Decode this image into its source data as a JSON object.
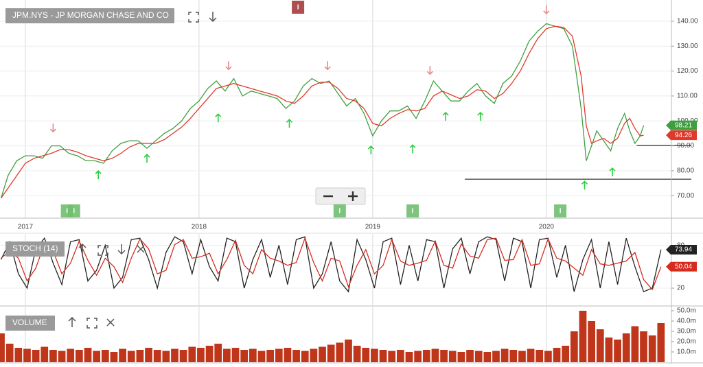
{
  "chart_data": [
    {
      "type": "line",
      "title": "JPM.NYS - JP MORGAN CHASE AND CO",
      "xlim": [
        2016.854,
        2020.72
      ],
      "xticks": [
        2017,
        2018,
        2019,
        2020
      ],
      "ylim": [
        61,
        148.5
      ],
      "yticks": [
        {
          "value": 70,
          "label": "70.00"
        },
        {
          "value": 80,
          "label": "80.00"
        },
        {
          "value": 90,
          "label": "90.00"
        },
        {
          "value": 100,
          "label": "100.00"
        },
        {
          "value": 110,
          "label": "110.00"
        },
        {
          "value": 120,
          "label": "120.00"
        },
        {
          "value": 130,
          "label": "130.00"
        },
        {
          "value": 140,
          "label": "140.00"
        }
      ],
      "grid": true,
      "x": [
        2016.86,
        2016.9,
        2016.95,
        2017.0,
        2017.05,
        2017.1,
        2017.15,
        2017.2,
        2017.25,
        2017.3,
        2017.35,
        2017.4,
        2017.45,
        2017.5,
        2017.55,
        2017.6,
        2017.65,
        2017.7,
        2017.75,
        2017.8,
        2017.85,
        2017.9,
        2017.95,
        2018.0,
        2018.05,
        2018.1,
        2018.15,
        2018.2,
        2018.25,
        2018.3,
        2018.35,
        2018.4,
        2018.45,
        2018.5,
        2018.55,
        2018.6,
        2018.65,
        2018.7,
        2018.75,
        2018.8,
        2018.85,
        2018.9,
        2018.95,
        2019.0,
        2019.05,
        2019.1,
        2019.15,
        2019.2,
        2019.25,
        2019.3,
        2019.35,
        2019.4,
        2019.45,
        2019.5,
        2019.55,
        2019.6,
        2019.65,
        2019.7,
        2019.75,
        2019.8,
        2019.85,
        2019.9,
        2019.95,
        2020.0,
        2020.05,
        2020.1,
        2020.15,
        2020.2,
        2020.23,
        2020.26,
        2020.29,
        2020.33,
        2020.37,
        2020.41,
        2020.45,
        2020.48,
        2020.51,
        2020.54,
        2020.56
      ],
      "series": [
        {
          "color": "#3f9f3f",
          "values": [
            69,
            78,
            84,
            86,
            86,
            85,
            90,
            90,
            87,
            86,
            84,
            84,
            83,
            88,
            91,
            92,
            92,
            89,
            92,
            95,
            97,
            100,
            105,
            108,
            113,
            116,
            112,
            117,
            110,
            112,
            111,
            110,
            109,
            105,
            108,
            114,
            117,
            115,
            116,
            111,
            106,
            109,
            103,
            94,
            100,
            104,
            104,
            106,
            101,
            108,
            116,
            112,
            108,
            108,
            112,
            115,
            110,
            107,
            115,
            118,
            124,
            132,
            136,
            139,
            138,
            137,
            130,
            105,
            84,
            90,
            96,
            92,
            88,
            97,
            103,
            96,
            91,
            94,
            98.21
          ]
        },
        {
          "color": "#e0392c",
          "values": [
            69,
            73,
            78,
            83,
            85,
            86,
            87,
            88.5,
            88.5,
            87.5,
            86,
            85,
            84,
            85,
            87,
            89.5,
            91,
            91,
            91,
            92.5,
            95,
            97.5,
            101,
            105,
            109,
            113,
            114,
            115,
            114,
            113,
            112,
            111,
            110,
            108,
            107,
            110,
            114,
            115.5,
            115.5,
            113,
            109,
            108,
            105,
            99,
            98,
            101,
            103,
            104.5,
            104,
            105,
            110,
            112,
            110.5,
            109,
            110,
            112.5,
            112,
            109,
            111,
            115,
            120,
            127,
            133,
            137,
            138,
            137.5,
            134,
            118,
            98,
            91,
            92,
            93,
            91,
            93,
            99,
            101,
            97,
            94,
            94.26
          ]
        }
      ],
      "signals": [
        {
          "x": 2017.16,
          "y": 97.3,
          "dir": "down"
        },
        {
          "x": 2018.17,
          "y": 122.3,
          "dir": "down"
        },
        {
          "x": 2018.74,
          "y": 122.3,
          "dir": "down"
        },
        {
          "x": 2019.33,
          "y": 120.4,
          "dir": "down"
        },
        {
          "x": 2020.0,
          "y": 144.7,
          "dir": "down"
        },
        {
          "x": 2017.42,
          "y": 78.3,
          "dir": "up"
        },
        {
          "x": 2017.7,
          "y": 84.9,
          "dir": "up"
        },
        {
          "x": 2018.11,
          "y": 101.1,
          "dir": "up"
        },
        {
          "x": 2018.52,
          "y": 98.9,
          "dir": "up"
        },
        {
          "x": 2018.99,
          "y": 88.2,
          "dir": "up"
        },
        {
          "x": 2019.23,
          "y": 88.7,
          "dir": "up"
        },
        {
          "x": 2019.42,
          "y": 101.7,
          "dir": "up"
        },
        {
          "x": 2019.62,
          "y": 101.7,
          "dir": "up"
        },
        {
          "x": 2020.22,
          "y": 74.1,
          "dir": "up"
        },
        {
          "x": 2020.38,
          "y": 79.4,
          "dir": "up"
        }
      ],
      "events": [
        {
          "x": 2017.24,
          "label": "I",
          "color": "#6fbf6f",
          "position": "bottom"
        },
        {
          "x": 2017.28,
          "label": "I",
          "color": "#6fbf6f",
          "position": "bottom"
        },
        {
          "x": 2018.81,
          "label": "I",
          "color": "#6fbf6f",
          "position": "bottom"
        },
        {
          "x": 2019.23,
          "label": "I",
          "color": "#6fbf6f",
          "position": "bottom"
        },
        {
          "x": 2020.08,
          "label": "I",
          "color": "#6fbf6f",
          "position": "bottom"
        },
        {
          "x": 2018.57,
          "label": "I",
          "color": "#a53b3b",
          "position": "top"
        }
      ],
      "hlines": [
        {
          "value": 90.1,
          "from": 2020.52
        },
        {
          "value": 76.6,
          "from": 2019.53
        }
      ]
    },
    {
      "type": "line",
      "title": "STOCH (14)",
      "xlim": [
        2016.854,
        2020.72
      ],
      "ylim": [
        -4,
        96
      ],
      "yticks": [
        20,
        80
      ],
      "grid": true,
      "x": [
        2016.86,
        2016.91,
        2016.96,
        2017.01,
        2017.06,
        2017.11,
        2017.16,
        2017.21,
        2017.26,
        2017.31,
        2017.36,
        2017.41,
        2017.46,
        2017.51,
        2017.56,
        2017.61,
        2017.66,
        2017.71,
        2017.76,
        2017.81,
        2017.86,
        2017.91,
        2017.96,
        2018.01,
        2018.06,
        2018.11,
        2018.16,
        2018.21,
        2018.26,
        2018.31,
        2018.36,
        2018.41,
        2018.46,
        2018.51,
        2018.56,
        2018.61,
        2018.66,
        2018.71,
        2018.76,
        2018.81,
        2018.86,
        2018.91,
        2018.96,
        2019.01,
        2019.06,
        2019.11,
        2019.16,
        2019.21,
        2019.26,
        2019.31,
        2019.36,
        2019.41,
        2019.46,
        2019.51,
        2019.56,
        2019.61,
        2019.66,
        2019.71,
        2019.76,
        2019.81,
        2019.86,
        2019.91,
        2019.96,
        2020.01,
        2020.06,
        2020.11,
        2020.16,
        2020.21,
        2020.26,
        2020.31,
        2020.36,
        2020.41,
        2020.46,
        2020.51,
        2020.56,
        2020.61,
        2020.66
      ],
      "series": [
        {
          "color": "#222222",
          "values": [
            60,
            85,
            40,
            20,
            75,
            90,
            55,
            25,
            85,
            88,
            30,
            45,
            80,
            20,
            35,
            88,
            90,
            60,
            20,
            70,
            92,
            85,
            40,
            88,
            50,
            30,
            90,
            85,
            20,
            60,
            88,
            35,
            80,
            25,
            88,
            92,
            20,
            40,
            85,
            30,
            15,
            88,
            60,
            20,
            85,
            90,
            25,
            80,
            30,
            88,
            85,
            20,
            75,
            90,
            40,
            85,
            92,
            88,
            30,
            90,
            85,
            20,
            88,
            90,
            35,
            80,
            15,
            60,
            88,
            20,
            85,
            25,
            90,
            50,
            15,
            20,
            73.94
          ]
        },
        {
          "color": "#d62b1f",
          "values": [
            62,
            72,
            62,
            30,
            48,
            82,
            72,
            40,
            55,
            86,
            59,
            38,
            62,
            50,
            28,
            62,
            89,
            75,
            40,
            45,
            81,
            88,
            62,
            64,
            69,
            40,
            60,
            87,
            52,
            40,
            74,
            62,
            58,
            52,
            56,
            90,
            56,
            30,
            62,
            58,
            22,
            52,
            74,
            40,
            52,
            88,
            58,
            52,
            55,
            59,
            86,
            52,
            48,
            82,
            65,
            62,
            88,
            90,
            59,
            60,
            88,
            52,
            54,
            89,
            62,
            58,
            48,
            38,
            74,
            54,
            52,
            55,
            58,
            70,
            32,
            18,
            50.04
          ]
        }
      ]
    },
    {
      "type": "bar",
      "title": "VOLUME",
      "xlim": [
        2016.854,
        2020.72
      ],
      "ylim": [
        0,
        54000000
      ],
      "yticks": [
        {
          "value": 10000000,
          "label": "10.0m"
        },
        {
          "value": 20000000,
          "label": "20.0m"
        },
        {
          "value": 30000000,
          "label": "30.0m"
        },
        {
          "value": 40000000,
          "label": "40.0m"
        },
        {
          "value": 50000000,
          "label": "50.0m"
        }
      ],
      "color": "#c0361a",
      "x": [
        2016.86,
        2016.91,
        2016.96,
        2017.01,
        2017.06,
        2017.11,
        2017.16,
        2017.21,
        2017.26,
        2017.31,
        2017.36,
        2017.41,
        2017.46,
        2017.51,
        2017.56,
        2017.61,
        2017.66,
        2017.71,
        2017.76,
        2017.81,
        2017.86,
        2017.91,
        2017.96,
        2018.01,
        2018.06,
        2018.11,
        2018.16,
        2018.21,
        2018.26,
        2018.31,
        2018.36,
        2018.41,
        2018.46,
        2018.51,
        2018.56,
        2018.61,
        2018.66,
        2018.71,
        2018.76,
        2018.81,
        2018.86,
        2018.91,
        2018.96,
        2019.01,
        2019.06,
        2019.11,
        2019.16,
        2019.21,
        2019.26,
        2019.31,
        2019.36,
        2019.41,
        2019.46,
        2019.51,
        2019.56,
        2019.61,
        2019.66,
        2019.71,
        2019.76,
        2019.81,
        2019.86,
        2019.91,
        2019.96,
        2020.01,
        2020.06,
        2020.11,
        2020.16,
        2020.21,
        2020.26,
        2020.31,
        2020.36,
        2020.41,
        2020.46,
        2020.51,
        2020.56,
        2020.61,
        2020.66
      ],
      "values": [
        28000000,
        18000000,
        14000000,
        13000000,
        12000000,
        15000000,
        12000000,
        11000000,
        13000000,
        12000000,
        14000000,
        11000000,
        12000000,
        10000000,
        13000000,
        11000000,
        12000000,
        14000000,
        12000000,
        11000000,
        13000000,
        12000000,
        15000000,
        14000000,
        16000000,
        18000000,
        13000000,
        14000000,
        12000000,
        13000000,
        11000000,
        12000000,
        13000000,
        14000000,
        12000000,
        11000000,
        13000000,
        15000000,
        17000000,
        19000000,
        22000000,
        16000000,
        14000000,
        13000000,
        12000000,
        11000000,
        12000000,
        10000000,
        11000000,
        12000000,
        13000000,
        12000000,
        11000000,
        10000000,
        12000000,
        11000000,
        10000000,
        11000000,
        13000000,
        12000000,
        11000000,
        13000000,
        12000000,
        11000000,
        14000000,
        16000000,
        30000000,
        50000000,
        40000000,
        32000000,
        24000000,
        22000000,
        28000000,
        35000000,
        30000000,
        26000000,
        38000000
      ]
    }
  ]
}
